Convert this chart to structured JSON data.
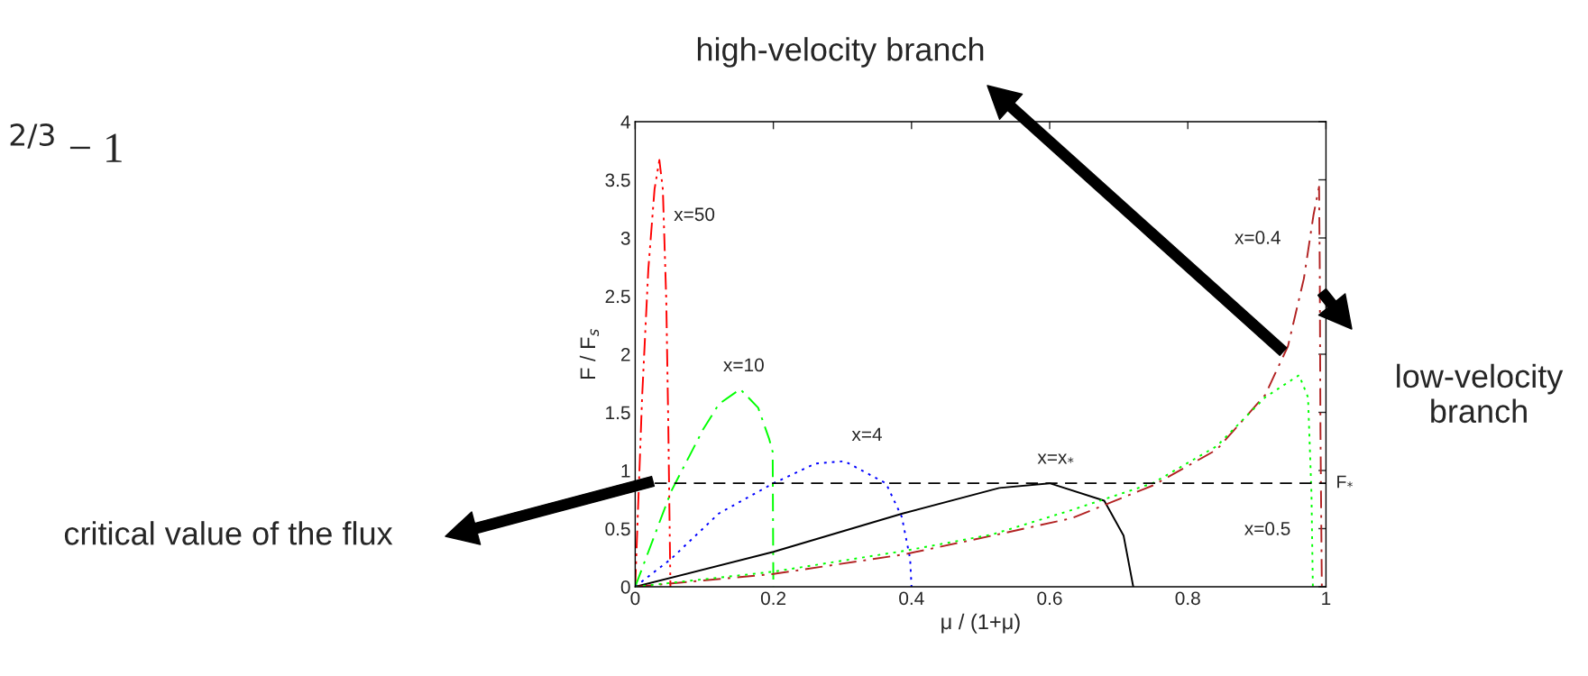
{
  "chart_data": {
    "type": "line",
    "xlabel": "μ / (1+μ)",
    "ylabel": "F / F$_{s}$",
    "xlim": [
      0,
      1
    ],
    "ylim": [
      0,
      4
    ],
    "xticks": [
      0,
      0.2,
      0.4,
      0.6,
      0.8,
      1
    ],
    "yticks": [
      0,
      0.5,
      1,
      1.5,
      2,
      2.5,
      3,
      3.5,
      4
    ],
    "grid": false,
    "legend": false,
    "series": [
      {
        "name": "x=50",
        "color": "#ff0000",
        "line_style": "dashdotdot",
        "x": [
          0,
          0.01,
          0.019,
          0.028,
          0.035,
          0.04,
          0.045,
          0.048,
          0.051
        ],
        "values": [
          0,
          1.63,
          2.73,
          3.42,
          3.67,
          3.42,
          2.46,
          1.35,
          0
        ]
      },
      {
        "name": "x=10",
        "color": "#00ff00",
        "line_style": "dashdot",
        "x": [
          0,
          0.052,
          0.098,
          0.121,
          0.152,
          0.178,
          0.194,
          0.199,
          0.2
        ],
        "values": [
          0,
          0.82,
          1.35,
          1.57,
          1.7,
          1.54,
          1.27,
          1.16,
          0
        ]
      },
      {
        "name": "x=4",
        "color": "#0000ff",
        "line_style": "dotted",
        "x": [
          0,
          0.052,
          0.121,
          0.2,
          0.261,
          0.303,
          0.363,
          0.386,
          0.398,
          0.4
        ],
        "values": [
          0,
          0.24,
          0.63,
          0.89,
          1.06,
          1.08,
          0.89,
          0.6,
          0.24,
          0
        ]
      },
      {
        "name": "x=x$_{*}$",
        "color": "#000000",
        "line_style": "solid",
        "x": [
          0,
          0.2,
          0.387,
          0.527,
          0.6,
          0.679,
          0.707,
          0.721
        ],
        "values": [
          0,
          0.3,
          0.63,
          0.85,
          0.89,
          0.74,
          0.44,
          0
        ]
      },
      {
        "name": "x=0.4",
        "color": "#b22222",
        "line_style": "dashdot",
        "x": [
          0,
          0.2,
          0.391,
          0.517,
          0.632,
          0.749,
          0.842,
          0.912,
          0.945,
          0.968,
          0.982,
          0.99,
          0.991,
          0.992,
          0.994
        ],
        "values": [
          0,
          0.11,
          0.28,
          0.44,
          0.59,
          0.87,
          1.18,
          1.65,
          2.07,
          2.65,
          3.2,
          3.44,
          2.73,
          1.35,
          0
        ]
      },
      {
        "name": "x=0.5",
        "color": "#00ff00",
        "line_style": "dotted",
        "x": [
          0,
          0.2,
          0.391,
          0.517,
          0.632,
          0.749,
          0.842,
          0.912,
          0.961,
          0.974,
          0.979,
          0.981
        ],
        "values": [
          0,
          0.13,
          0.31,
          0.45,
          0.66,
          0.89,
          1.21,
          1.63,
          1.82,
          1.63,
          0.8,
          0
        ]
      }
    ],
    "ref_lines": [
      {
        "axis": "y",
        "value": 0.89,
        "label": "F$_{*}$",
        "color": "#000000",
        "line_style": "dashed"
      }
    ],
    "annotations": [
      "$^{2/3}$ − 1",
      "high-velocity branch",
      "low-velocity\nbranch",
      "critical value of the flux"
    ]
  }
}
